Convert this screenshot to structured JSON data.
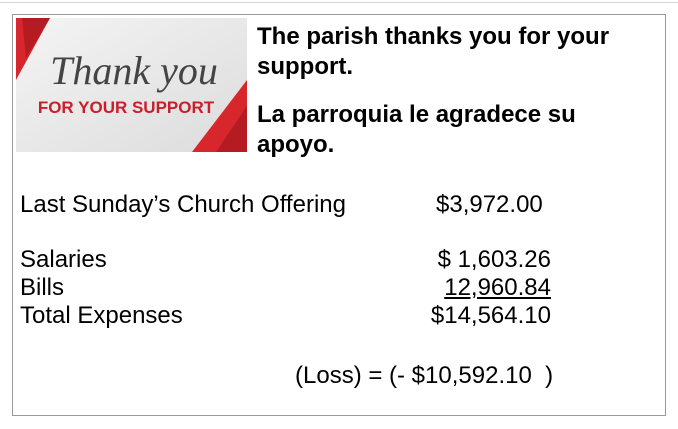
{
  "image": {
    "script_text": "Thank you",
    "caption": "FOR YOUR SUPPORT"
  },
  "header": {
    "english": "The parish thanks you for your support.",
    "spanish": "La parroquia le agradece su apoyo."
  },
  "offering": {
    "label": "Last Sunday’s Church Offering",
    "amount": "$3,972.00"
  },
  "expenses": {
    "rows": [
      [
        "Salaries",
        "$ 1,603.26"
      ],
      [
        "Bills",
        "12,960.84"
      ],
      [
        "Total Expenses",
        "$14,564.10"
      ]
    ]
  },
  "result": "(Loss) = (- $10,592.10  )"
}
